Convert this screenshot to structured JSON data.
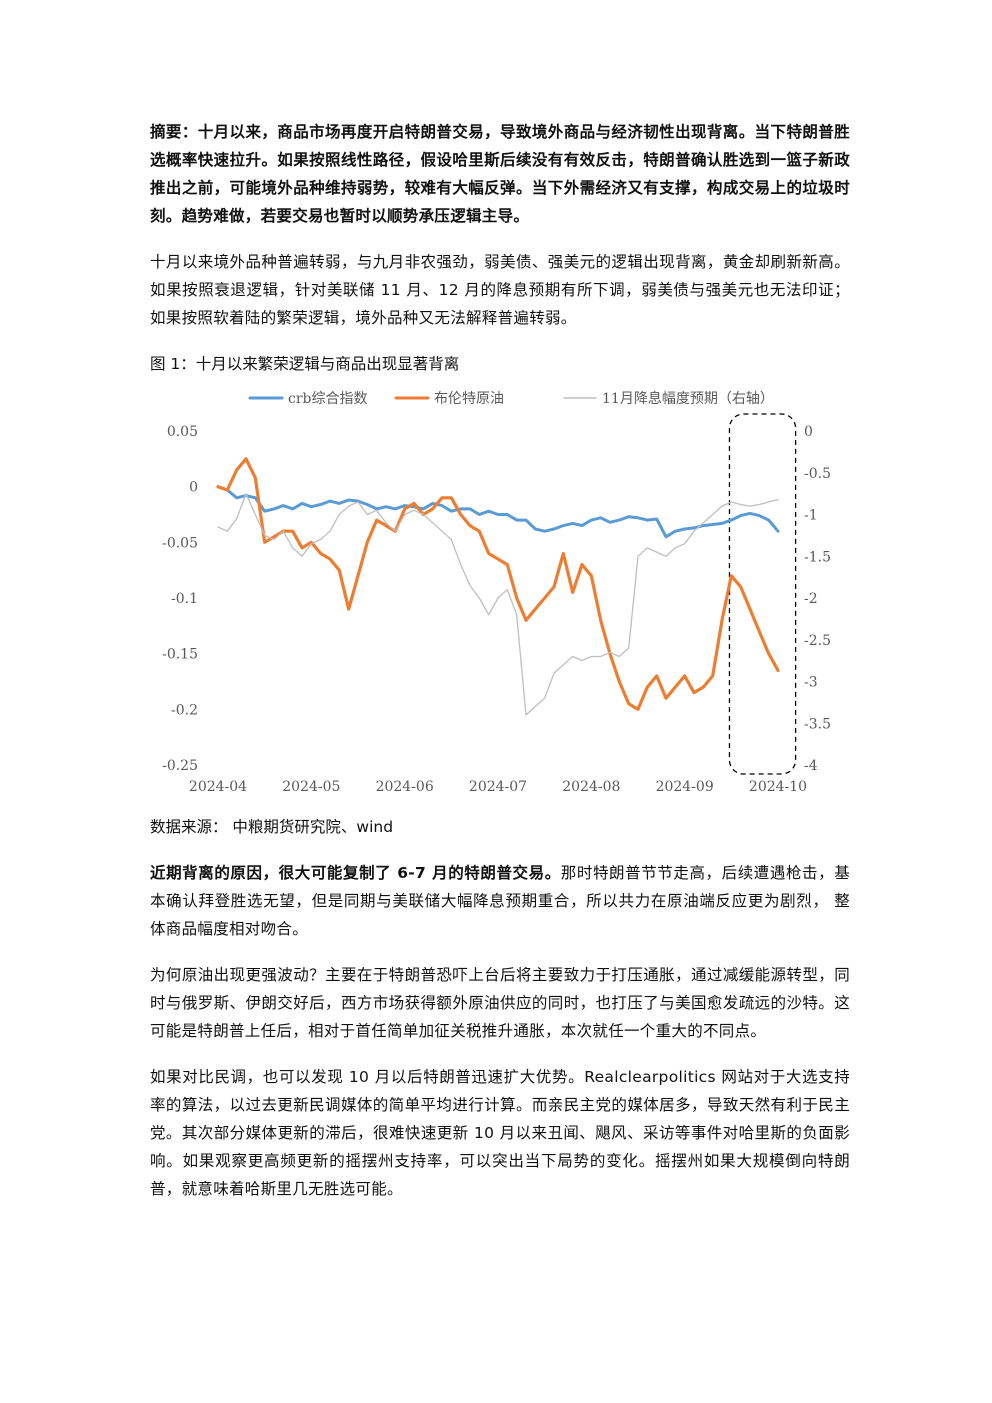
{
  "abstract": {
    "lead": "摘要：",
    "text": "十月以来，商品市场再度开启特朗普交易，导致境外商品与经济韧性出现背离。当下特朗普胜选概率快速拉升。如果按照线性路径，假设哈里斯后续没有有效反击，特朗普确认胜选到一篮子新政推出之前，可能境外品种维持弱势，较难有大幅反弹。当下外需经济又有支撑，构成交易上的垃圾时刻。趋势难做，若要交易也暂时以顺势承压逻辑主导。"
  },
  "paragraph1": "十月以来境外品种普遍转弱，与九月非农强劲，弱美债、强美元的逻辑出现背离，黄金却刷新新高。如果按照衰退逻辑，针对美联储 11 月、12 月的降息预期有所下调，弱美债与强美元也无法印证；如果按照软着陆的繁荣逻辑，境外品种又无法解释普遍转弱。",
  "figure_title": "图 1：十月以来繁荣逻辑与商品出现显著背离",
  "source": "数据来源：  中粮期货研究院、wind",
  "paragraph2": {
    "lead": "近期背离的原因，很大可能复制了 6-7 月的特朗普交易。",
    "text": "那时特朗普节节走高，后续遭遇枪击，基本确认拜登胜选无望，但是同期与美联储大幅降息预期重合，所以共力在原油端反应更为剧烈， 整体商品幅度相对吻合。"
  },
  "paragraph3": "为何原油出现更强波动？主要在于特朗普恐吓上台后将主要致力于打压通胀，通过减缓能源转型，同时与俄罗斯、伊朗交好后，西方市场获得额外原油供应的同时，也打压了与美国愈发疏远的沙特。这可能是特朗普上任后，相对于首任简单加征关税推升通胀，本次就任一个重大的不同点。",
  "paragraph4": "如果对比民调，也可以发现 10 月以后特朗普迅速扩大优势。Realclearpolitics 网站对于大选支持率的算法，以过去更新民调媒体的简单平均进行计算。而亲民主党的媒体居多，导致天然有利于民主党。其次部分媒体更新的滞后，很难快速更新 10 月以来丑闻、飓风、采访等事件对哈里斯的负面影响。如果观察更高频更新的摇摆州支持率，可以突出当下局势的变化。摇摆州如果大规模倒向特朗普，就意味着哈斯里几无胜选可能。",
  "chart_data": {
    "type": "line",
    "title": "",
    "x_tick_labels": [
      "2024-04",
      "2024-05",
      "2024-06",
      "2024-07",
      "2024-08",
      "2024-09",
      "2024-10"
    ],
    "y_left_tick_labels": [
      "0.05",
      "0",
      "-0.05",
      "-0.1",
      "-0.15",
      "-0.2",
      "-0.25"
    ],
    "y_right_tick_labels": [
      "0",
      "-0.5",
      "-1",
      "-1.5",
      "-2",
      "-2.5",
      "-3",
      "-3.5",
      "-4"
    ],
    "ylim_left": [
      -0.25,
      0.05
    ],
    "ylim_right": [
      -4,
      0
    ],
    "legend_position": "top",
    "grid": false,
    "highlight_box": "dashed rounded box over October 2024",
    "series": [
      {
        "name": "crb综合指数",
        "axis": "left",
        "color": "#5B9BD5",
        "x": [
          0,
          0.1,
          0.2,
          0.3,
          0.4,
          0.5,
          0.6,
          0.7,
          0.8,
          0.9,
          1.0,
          1.1,
          1.2,
          1.3,
          1.4,
          1.5,
          1.6,
          1.7,
          1.8,
          1.9,
          2.0,
          2.1,
          2.2,
          2.3,
          2.4,
          2.5,
          2.6,
          2.7,
          2.8,
          2.9,
          3.0,
          3.1,
          3.2,
          3.3,
          3.4,
          3.5,
          3.6,
          3.7,
          3.8,
          3.9,
          4.0,
          4.1,
          4.2,
          4.3,
          4.4,
          4.5,
          4.6,
          4.7,
          4.8,
          4.9,
          5.0,
          5.1,
          5.2,
          5.3,
          5.4,
          5.5,
          5.6,
          5.7,
          5.8,
          5.9,
          6.0
        ],
        "values": [
          0.0,
          -0.003,
          -0.01,
          -0.008,
          -0.01,
          -0.022,
          -0.02,
          -0.017,
          -0.02,
          -0.015,
          -0.018,
          -0.016,
          -0.013,
          -0.015,
          -0.012,
          -0.013,
          -0.016,
          -0.02,
          -0.018,
          -0.02,
          -0.017,
          -0.018,
          -0.02,
          -0.015,
          -0.017,
          -0.022,
          -0.02,
          -0.02,
          -0.025,
          -0.022,
          -0.025,
          -0.025,
          -0.03,
          -0.03,
          -0.038,
          -0.04,
          -0.038,
          -0.035,
          -0.033,
          -0.035,
          -0.03,
          -0.028,
          -0.032,
          -0.03,
          -0.027,
          -0.028,
          -0.03,
          -0.029,
          -0.045,
          -0.04,
          -0.038,
          -0.037,
          -0.035,
          -0.034,
          -0.033,
          -0.03,
          -0.026,
          -0.024,
          -0.026,
          -0.03,
          -0.04
        ]
      },
      {
        "name": "布伦特原油",
        "axis": "left",
        "color": "#ED7D31",
        "x": [
          0,
          0.1,
          0.2,
          0.3,
          0.4,
          0.5,
          0.6,
          0.7,
          0.8,
          0.9,
          1.0,
          1.1,
          1.2,
          1.3,
          1.4,
          1.5,
          1.6,
          1.7,
          1.8,
          1.9,
          2.0,
          2.1,
          2.2,
          2.3,
          2.4,
          2.5,
          2.6,
          2.7,
          2.8,
          2.9,
          3.0,
          3.1,
          3.2,
          3.3,
          3.4,
          3.5,
          3.6,
          3.7,
          3.8,
          3.9,
          4.0,
          4.1,
          4.2,
          4.3,
          4.4,
          4.5,
          4.6,
          4.7,
          4.8,
          4.9,
          5.0,
          5.1,
          5.2,
          5.3,
          5.4,
          5.5,
          5.6,
          5.7,
          5.8,
          5.9,
          6.0
        ],
        "values": [
          0.0,
          -0.003,
          0.015,
          0.025,
          0.008,
          -0.05,
          -0.045,
          -0.04,
          -0.04,
          -0.055,
          -0.05,
          -0.06,
          -0.065,
          -0.075,
          -0.11,
          -0.08,
          -0.05,
          -0.03,
          -0.035,
          -0.04,
          -0.02,
          -0.015,
          -0.025,
          -0.02,
          -0.01,
          -0.01,
          -0.025,
          -0.035,
          -0.04,
          -0.06,
          -0.065,
          -0.07,
          -0.1,
          -0.12,
          -0.11,
          -0.1,
          -0.09,
          -0.06,
          -0.095,
          -0.07,
          -0.08,
          -0.12,
          -0.15,
          -0.175,
          -0.195,
          -0.2,
          -0.18,
          -0.17,
          -0.19,
          -0.18,
          -0.17,
          -0.185,
          -0.18,
          -0.17,
          -0.12,
          -0.08,
          -0.09,
          -0.11,
          -0.13,
          -0.15,
          -0.165
        ]
      },
      {
        "name": "11月降息幅度预期（右轴）",
        "axis": "right",
        "color": "#BFBFBF",
        "x": [
          0,
          0.1,
          0.2,
          0.3,
          0.4,
          0.5,
          0.6,
          0.7,
          0.8,
          0.9,
          1.0,
          1.1,
          1.2,
          1.3,
          1.4,
          1.5,
          1.6,
          1.7,
          1.8,
          1.9,
          2.0,
          2.1,
          2.2,
          2.3,
          2.4,
          2.5,
          2.6,
          2.7,
          2.8,
          2.9,
          3.0,
          3.1,
          3.2,
          3.3,
          3.4,
          3.5,
          3.6,
          3.7,
          3.8,
          3.9,
          4.0,
          4.1,
          4.2,
          4.3,
          4.4,
          4.5,
          4.6,
          4.7,
          4.8,
          4.9,
          5.0,
          5.1,
          5.2,
          5.3,
          5.4,
          5.5,
          5.6,
          5.7,
          5.8,
          5.9,
          6.0
        ],
        "values": [
          -1.15,
          -1.2,
          -1.05,
          -0.75,
          -1.0,
          -1.25,
          -1.3,
          -1.2,
          -1.4,
          -1.5,
          -1.35,
          -1.3,
          -1.2,
          -1.0,
          -0.9,
          -0.85,
          -1.0,
          -0.95,
          -1.1,
          -1.2,
          -1.0,
          -0.95,
          -1.0,
          -1.1,
          -1.2,
          -1.3,
          -1.6,
          -1.85,
          -2.0,
          -2.2,
          -2.0,
          -1.9,
          -2.2,
          -3.4,
          -3.3,
          -3.2,
          -2.9,
          -2.8,
          -2.7,
          -2.75,
          -2.7,
          -2.7,
          -2.65,
          -2.7,
          -2.6,
          -1.5,
          -1.4,
          -1.45,
          -1.5,
          -1.4,
          -1.35,
          -1.2,
          -1.1,
          -1.0,
          -0.9,
          -0.85,
          -0.88,
          -0.9,
          -0.88,
          -0.85,
          -0.82
        ]
      }
    ]
  }
}
